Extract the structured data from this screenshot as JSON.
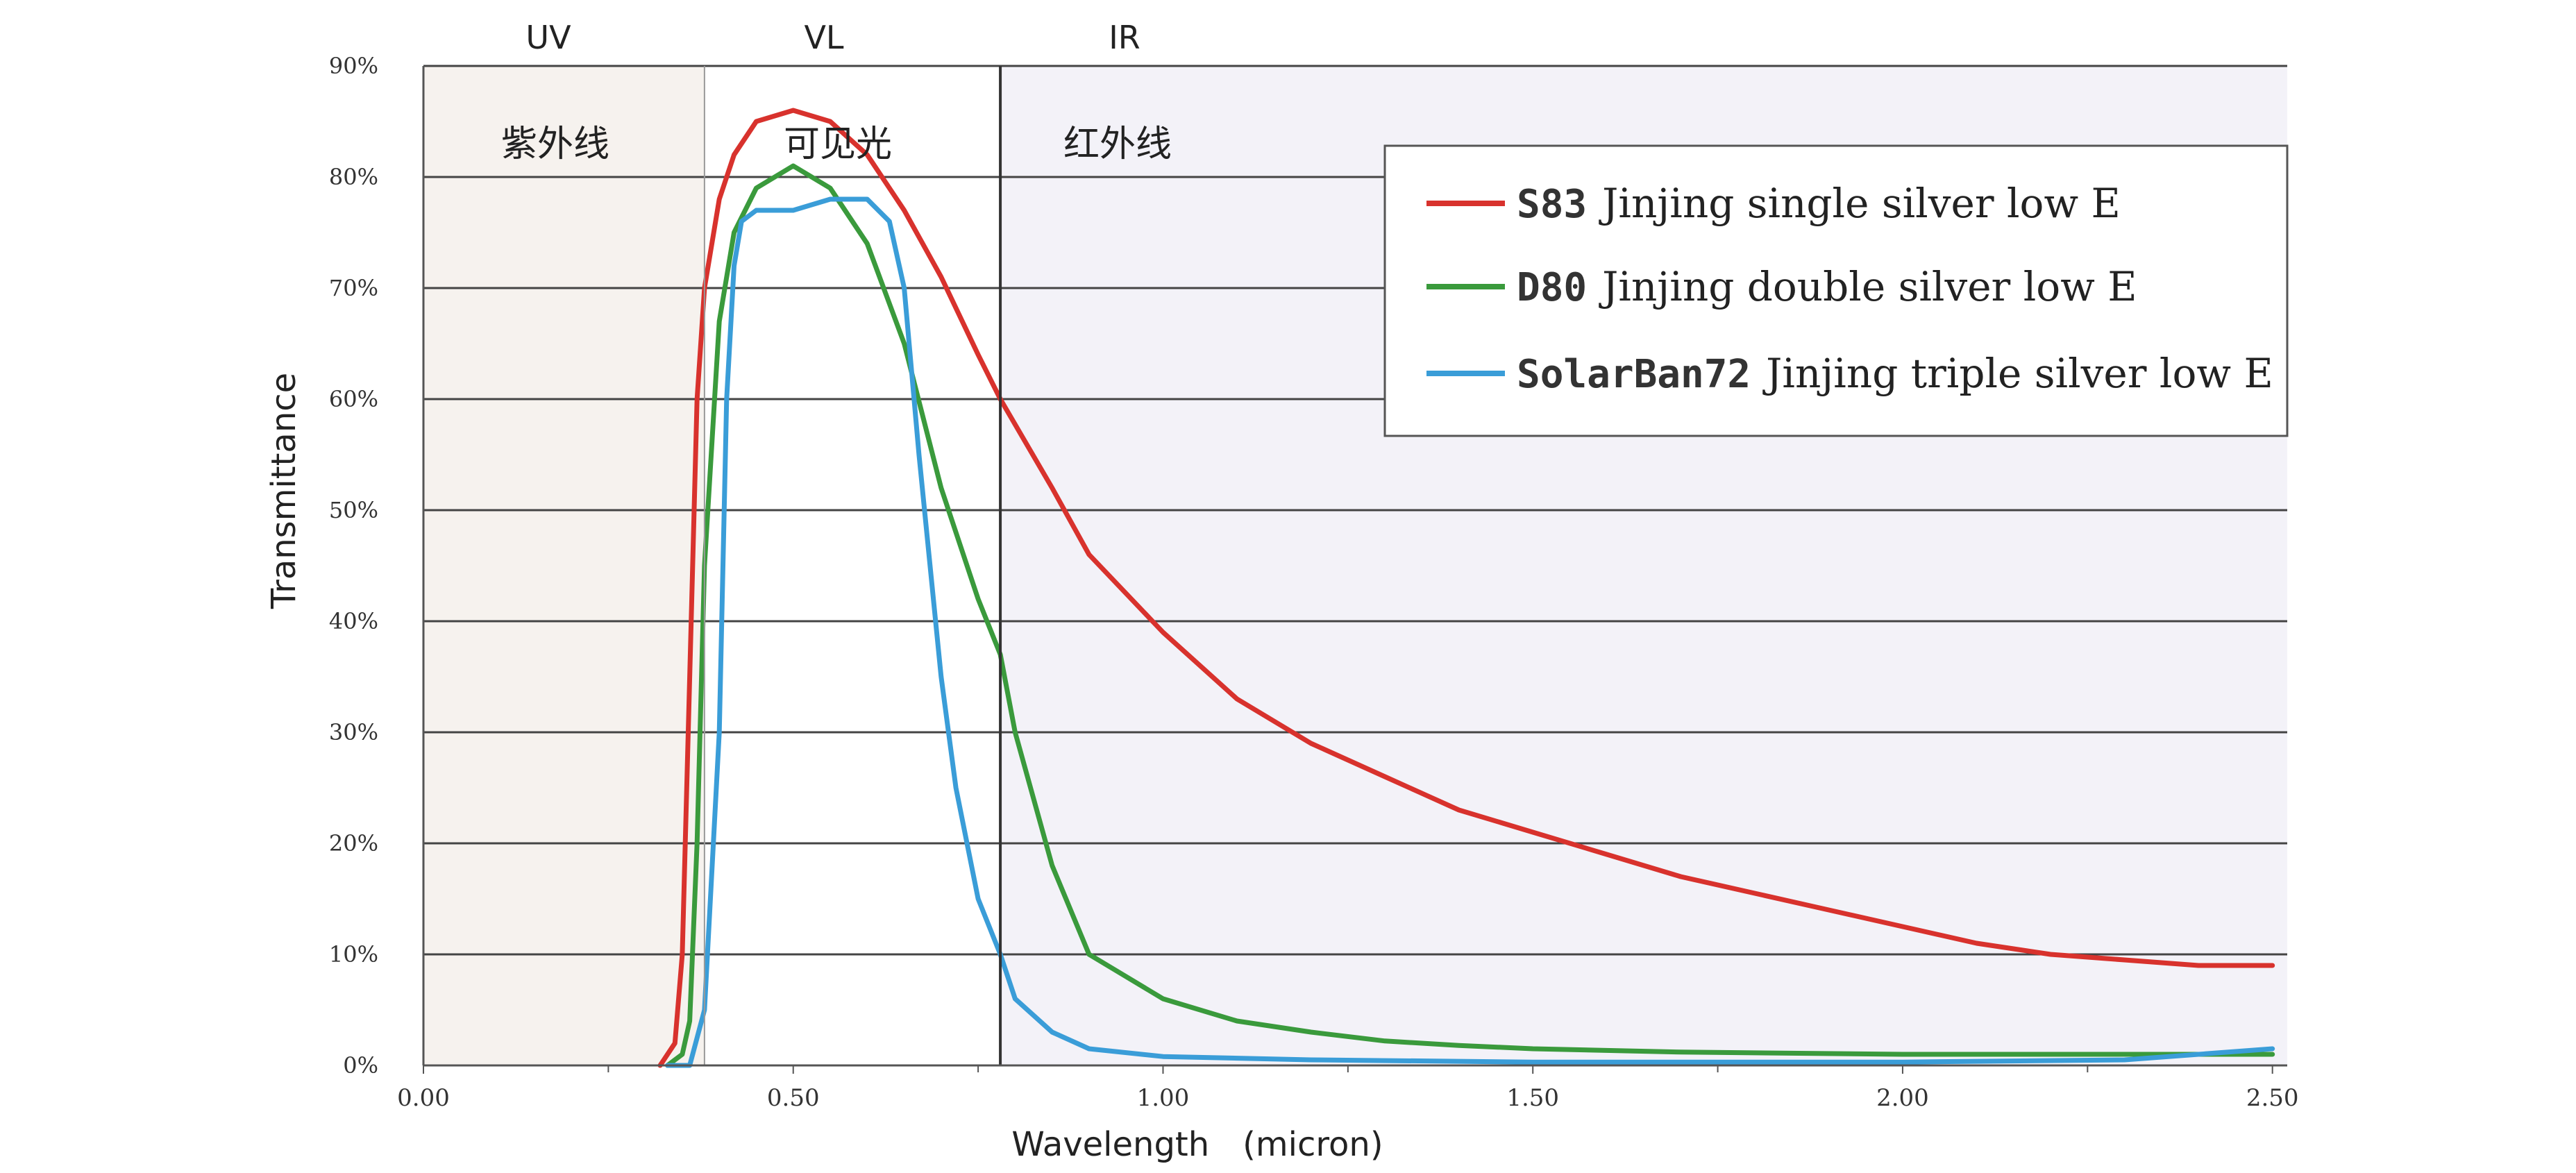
{
  "chart_data": {
    "type": "line",
    "xlabel": "Wavelength　(micron)",
    "ylabel": "Transmittance",
    "xlim": [
      0,
      2.52
    ],
    "ylim": [
      0,
      90
    ],
    "x_ticks": [
      "0.00",
      "0.50",
      "1.00",
      "1.50",
      "2.00",
      "2.50"
    ],
    "y_ticks": [
      "0%",
      "10%",
      "20%",
      "30%",
      "40%",
      "50%",
      "60%",
      "70%",
      "80%",
      "90%"
    ],
    "grid": "horizontal",
    "legend_position": "top-right",
    "regions": [
      {
        "label": "UV",
        "cn_label": "紫外线",
        "x_range": [
          0,
          0.38
        ],
        "color": "#f6f2ee"
      },
      {
        "label": "VL",
        "cn_label": "可见光",
        "x_range": [
          0.38,
          0.78
        ],
        "color": "#ffffff"
      },
      {
        "label": "IR",
        "cn_label": "红外线",
        "x_range": [
          0.78,
          2.52
        ],
        "color": "#f3f2f8"
      }
    ],
    "series": [
      {
        "code": "S83",
        "name": "Jinjing single silver low E",
        "color": "#d8322d",
        "x": [
          0.32,
          0.34,
          0.35,
          0.36,
          0.37,
          0.38,
          0.4,
          0.42,
          0.45,
          0.5,
          0.55,
          0.6,
          0.65,
          0.7,
          0.75,
          0.78,
          0.85,
          0.9,
          1.0,
          1.1,
          1.2,
          1.3,
          1.4,
          1.5,
          1.6,
          1.7,
          1.8,
          1.9,
          2.0,
          2.1,
          2.2,
          2.3,
          2.4,
          2.5
        ],
        "values": [
          0,
          2,
          10,
          35,
          60,
          70,
          78,
          82,
          85,
          86,
          85,
          82,
          77,
          71,
          64,
          60,
          52,
          46,
          39,
          33,
          29,
          26,
          23,
          21,
          19,
          17,
          15.5,
          14,
          12.5,
          11,
          10,
          9.5,
          9,
          9
        ]
      },
      {
        "code": "D80",
        "name": "Jinjing double silver low E",
        "color": "#3a9a3c",
        "x": [
          0.33,
          0.35,
          0.36,
          0.37,
          0.38,
          0.4,
          0.42,
          0.45,
          0.5,
          0.55,
          0.6,
          0.65,
          0.7,
          0.75,
          0.78,
          0.8,
          0.85,
          0.9,
          1.0,
          1.1,
          1.2,
          1.3,
          1.4,
          1.5,
          1.7,
          2.0,
          2.3,
          2.5
        ],
        "values": [
          0,
          1,
          4,
          20,
          45,
          67,
          75,
          79,
          81,
          79,
          74,
          65,
          52,
          42,
          37,
          30,
          18,
          10,
          6,
          4,
          3,
          2.2,
          1.8,
          1.5,
          1.2,
          1,
          1,
          1
        ]
      },
      {
        "code": "SolarBan72",
        "name": "Jinjing triple silver low E",
        "color": "#3a9dd8",
        "x": [
          0.33,
          0.36,
          0.38,
          0.4,
          0.41,
          0.42,
          0.43,
          0.45,
          0.5,
          0.55,
          0.6,
          0.63,
          0.65,
          0.67,
          0.7,
          0.72,
          0.75,
          0.78,
          0.8,
          0.85,
          0.9,
          1.0,
          1.2,
          1.5,
          2.0,
          2.3,
          2.5
        ],
        "values": [
          0,
          0,
          5,
          30,
          60,
          72,
          76,
          77,
          77,
          78,
          78,
          76,
          70,
          55,
          35,
          25,
          15,
          10,
          6,
          3,
          1.5,
          0.8,
          0.5,
          0.3,
          0.3,
          0.5,
          1.5
        ]
      }
    ]
  }
}
